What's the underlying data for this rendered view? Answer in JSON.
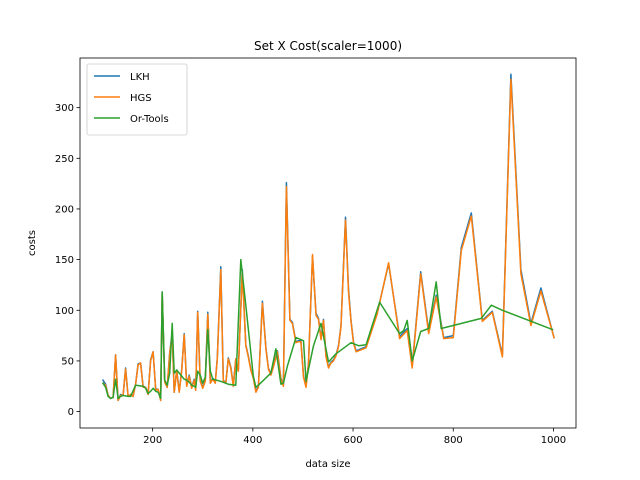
{
  "chart_data": {
    "type": "line",
    "title": "Set X Cost(scaler=1000)",
    "xlabel": "data size",
    "ylabel": "costs",
    "xlim": [
      55,
      1045
    ],
    "ylim": [
      -16.2,
      349
    ],
    "xticks": [
      200,
      400,
      600,
      800,
      1000
    ],
    "yticks": [
      0,
      50,
      100,
      150,
      200,
      250,
      300
    ],
    "legend_position": "upper-left",
    "grid": false,
    "series": [
      {
        "name": "LKH",
        "color": "#1f77b4",
        "points": [
          [
            101,
            31
          ],
          [
            106,
            27
          ],
          [
            111,
            16
          ],
          [
            116,
            13
          ],
          [
            121,
            14
          ],
          [
            126,
            56
          ],
          [
            131,
            11
          ],
          [
            136,
            17
          ],
          [
            141,
            16
          ],
          [
            146,
            43
          ],
          [
            151,
            15
          ],
          [
            156,
            17
          ],
          [
            161,
            15
          ],
          [
            166,
            27
          ],
          [
            171,
            47
          ],
          [
            176,
            48
          ],
          [
            181,
            25
          ],
          [
            186,
            24
          ],
          [
            191,
            17
          ],
          [
            196,
            51
          ],
          [
            201,
            59
          ],
          [
            206,
            22
          ],
          [
            211,
            22
          ],
          [
            216,
            11
          ],
          [
            219,
            118
          ],
          [
            224,
            30
          ],
          [
            229,
            24
          ],
          [
            234,
            58
          ],
          [
            239,
            78
          ],
          [
            243,
            19
          ],
          [
            248,
            41
          ],
          [
            253,
            20
          ],
          [
            258,
            41
          ],
          [
            263,
            77
          ],
          [
            268,
            26
          ],
          [
            273,
            36
          ],
          [
            278,
            24
          ],
          [
            283,
            32
          ],
          [
            286,
            22
          ],
          [
            290,
            99
          ],
          [
            295,
            31
          ],
          [
            300,
            24
          ],
          [
            305,
            31
          ],
          [
            310,
            98
          ],
          [
            315,
            29
          ],
          [
            320,
            33
          ],
          [
            325,
            29
          ],
          [
            329,
            53
          ],
          [
            336,
            143
          ],
          [
            341,
            31
          ],
          [
            346,
            28
          ],
          [
            351,
            53
          ],
          [
            356,
            44
          ],
          [
            361,
            26
          ],
          [
            366,
            52
          ],
          [
            371,
            40
          ],
          [
            379,
            140
          ],
          [
            386,
            66
          ],
          [
            391,
            55
          ],
          [
            396,
            42
          ],
          [
            401,
            34
          ],
          [
            406,
            20
          ],
          [
            411,
            25
          ],
          [
            419,
            109
          ],
          [
            426,
            63
          ],
          [
            431,
            43
          ],
          [
            436,
            37
          ],
          [
            441,
            45
          ],
          [
            449,
            60
          ],
          [
            456,
            33
          ],
          [
            461,
            26
          ],
          [
            467,
            226
          ],
          [
            474,
            91
          ],
          [
            479,
            88
          ],
          [
            486,
            69
          ],
          [
            491,
            70
          ],
          [
            496,
            70
          ],
          [
            501,
            35
          ],
          [
            506,
            25
          ],
          [
            511,
            48
          ],
          [
            519,
            153
          ],
          [
            526,
            97
          ],
          [
            531,
            92
          ],
          [
            536,
            72
          ],
          [
            541,
            91
          ],
          [
            546,
            55
          ],
          [
            551,
            44
          ],
          [
            556,
            49
          ],
          [
            561,
            51
          ],
          [
            566,
            56
          ],
          [
            571,
            65
          ],
          [
            576,
            85
          ],
          [
            585,
            192
          ],
          [
            591,
            121
          ],
          [
            596,
            90
          ],
          [
            601,
            68
          ],
          [
            606,
            60
          ],
          [
            616,
            62
          ],
          [
            626,
            64
          ],
          [
            648,
            97
          ],
          [
            671,
            146
          ],
          [
            693,
            74
          ],
          [
            708,
            82
          ],
          [
            718,
            45
          ],
          [
            735,
            138
          ],
          [
            751,
            79
          ],
          [
            766,
            115
          ],
          [
            781,
            73
          ],
          [
            800,
            75
          ],
          [
            816,
            162
          ],
          [
            836,
            196
          ],
          [
            858,
            90
          ],
          [
            878,
            99
          ],
          [
            898,
            56
          ],
          [
            915,
            333
          ],
          [
            935,
            140
          ],
          [
            955,
            87
          ],
          [
            975,
            122
          ],
          [
            1001,
            73
          ]
        ]
      },
      {
        "name": "HGS",
        "color": "#ff7f0e",
        "points": [
          [
            101,
            28
          ],
          [
            106,
            26
          ],
          [
            111,
            16
          ],
          [
            116,
            13
          ],
          [
            121,
            14
          ],
          [
            126,
            56
          ],
          [
            131,
            11
          ],
          [
            136,
            16
          ],
          [
            141,
            16
          ],
          [
            146,
            42
          ],
          [
            151,
            15
          ],
          [
            156,
            17
          ],
          [
            161,
            15
          ],
          [
            166,
            27
          ],
          [
            171,
            46
          ],
          [
            176,
            48
          ],
          [
            181,
            24
          ],
          [
            186,
            24
          ],
          [
            191,
            17
          ],
          [
            196,
            50
          ],
          [
            201,
            59
          ],
          [
            206,
            21
          ],
          [
            211,
            22
          ],
          [
            216,
            11
          ],
          [
            219,
            117
          ],
          [
            224,
            29
          ],
          [
            229,
            24
          ],
          [
            234,
            57
          ],
          [
            239,
            77
          ],
          [
            243,
            19
          ],
          [
            248,
            40
          ],
          [
            253,
            19
          ],
          [
            258,
            40
          ],
          [
            263,
            76
          ],
          [
            268,
            25
          ],
          [
            273,
            35
          ],
          [
            278,
            23
          ],
          [
            283,
            31
          ],
          [
            286,
            21
          ],
          [
            290,
            98
          ],
          [
            295,
            30
          ],
          [
            300,
            23
          ],
          [
            305,
            30
          ],
          [
            310,
            96
          ],
          [
            315,
            28
          ],
          [
            320,
            32
          ],
          [
            325,
            28
          ],
          [
            329,
            52
          ],
          [
            336,
            140
          ],
          [
            341,
            30
          ],
          [
            346,
            28
          ],
          [
            351,
            52
          ],
          [
            356,
            43
          ],
          [
            361,
            25
          ],
          [
            366,
            52
          ],
          [
            371,
            40
          ],
          [
            379,
            138
          ],
          [
            386,
            65
          ],
          [
            391,
            54
          ],
          [
            396,
            41
          ],
          [
            401,
            33
          ],
          [
            406,
            19
          ],
          [
            411,
            24
          ],
          [
            419,
            107
          ],
          [
            426,
            62
          ],
          [
            431,
            42
          ],
          [
            436,
            36
          ],
          [
            441,
            44
          ],
          [
            449,
            59
          ],
          [
            456,
            32
          ],
          [
            461,
            25
          ],
          [
            467,
            222
          ],
          [
            474,
            90
          ],
          [
            479,
            87
          ],
          [
            486,
            68
          ],
          [
            491,
            69
          ],
          [
            496,
            69
          ],
          [
            501,
            34
          ],
          [
            506,
            24
          ],
          [
            511,
            47
          ],
          [
            519,
            155
          ],
          [
            526,
            95
          ],
          [
            531,
            91
          ],
          [
            536,
            71
          ],
          [
            541,
            90
          ],
          [
            546,
            54
          ],
          [
            551,
            43
          ],
          [
            556,
            48
          ],
          [
            561,
            50
          ],
          [
            566,
            55
          ],
          [
            571,
            64
          ],
          [
            576,
            84
          ],
          [
            585,
            189
          ],
          [
            591,
            118
          ],
          [
            596,
            89
          ],
          [
            601,
            67
          ],
          [
            606,
            59
          ],
          [
            616,
            61
          ],
          [
            626,
            63
          ],
          [
            648,
            96
          ],
          [
            671,
            147
          ],
          [
            693,
            72
          ],
          [
            708,
            80
          ],
          [
            718,
            43
          ],
          [
            735,
            136
          ],
          [
            751,
            77
          ],
          [
            766,
            113
          ],
          [
            781,
            72
          ],
          [
            800,
            73
          ],
          [
            816,
            159
          ],
          [
            836,
            193
          ],
          [
            858,
            89
          ],
          [
            878,
            98
          ],
          [
            898,
            54
          ],
          [
            915,
            328
          ],
          [
            935,
            136
          ],
          [
            955,
            85
          ],
          [
            975,
            119
          ],
          [
            1001,
            73
          ]
        ]
      },
      {
        "name": "Or-Tools",
        "color": "#2ca02c",
        "points": [
          [
            101,
            28
          ],
          [
            106,
            24
          ],
          [
            111,
            15
          ],
          [
            116,
            13
          ],
          [
            121,
            14
          ],
          [
            126,
            32
          ],
          [
            131,
            13
          ],
          [
            136,
            15
          ],
          [
            141,
            16
          ],
          [
            151,
            15
          ],
          [
            156,
            15
          ],
          [
            166,
            26
          ],
          [
            181,
            25
          ],
          [
            186,
            23
          ],
          [
            191,
            18
          ],
          [
            196,
            20
          ],
          [
            201,
            23
          ],
          [
            206,
            20
          ],
          [
            211,
            19
          ],
          [
            216,
            13
          ],
          [
            219,
            118
          ],
          [
            224,
            31
          ],
          [
            229,
            26
          ],
          [
            234,
            38
          ],
          [
            239,
            87
          ],
          [
            243,
            38
          ],
          [
            248,
            41
          ],
          [
            253,
            38
          ],
          [
            258,
            35
          ],
          [
            263,
            32
          ],
          [
            268,
            31
          ],
          [
            273,
            29
          ],
          [
            278,
            26
          ],
          [
            283,
            25
          ],
          [
            286,
            24
          ],
          [
            290,
            40
          ],
          [
            295,
            36
          ],
          [
            300,
            28
          ],
          [
            305,
            34
          ],
          [
            310,
            81
          ],
          [
            315,
            40
          ],
          [
            320,
            32
          ],
          [
            335,
            30
          ],
          [
            351,
            27
          ],
          [
            366,
            26
          ],
          [
            376,
            150
          ],
          [
            386,
            105
          ],
          [
            401,
            35
          ],
          [
            406,
            24
          ],
          [
            411,
            26
          ],
          [
            436,
            38
          ],
          [
            446,
            62
          ],
          [
            456,
            27
          ],
          [
            461,
            28
          ],
          [
            469,
            45
          ],
          [
            486,
            73
          ],
          [
            501,
            70
          ],
          [
            506,
            30
          ],
          [
            521,
            65
          ],
          [
            536,
            87
          ],
          [
            551,
            49
          ],
          [
            566,
            57
          ],
          [
            596,
            68
          ],
          [
            611,
            65
          ],
          [
            626,
            66
          ],
          [
            653,
            108
          ],
          [
            693,
            77
          ],
          [
            701,
            80
          ],
          [
            708,
            90
          ],
          [
            718,
            50
          ],
          [
            735,
            79
          ],
          [
            751,
            82
          ],
          [
            766,
            128
          ],
          [
            776,
            82
          ],
          [
            856,
            92
          ],
          [
            876,
            105
          ],
          [
            898,
            100
          ],
          [
            998,
            81
          ]
        ]
      }
    ]
  }
}
